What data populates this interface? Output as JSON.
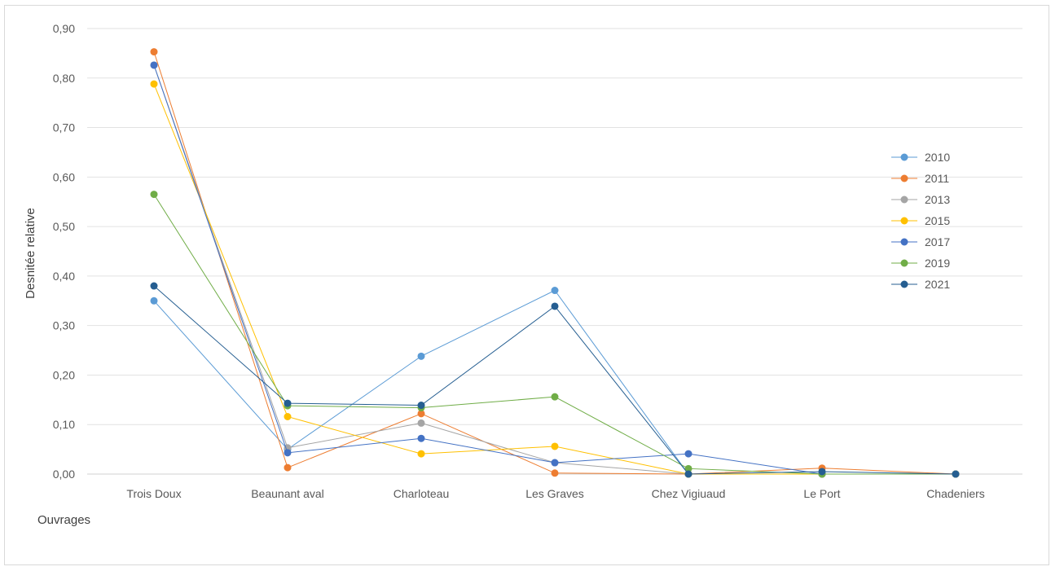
{
  "chart_data": {
    "type": "line",
    "title": "",
    "xlabel": "Ouvrages",
    "ylabel": "Desnitée relative",
    "ylim": [
      0,
      0.9
    ],
    "ytick_step": 0.1,
    "ytick_labels": [
      "0,00",
      "0,10",
      "0,20",
      "0,30",
      "0,40",
      "0,50",
      "0,60",
      "0,70",
      "0,80",
      "0,90"
    ],
    "categories": [
      "Trois Doux",
      "Beaunant aval",
      "Charloteau",
      "Les Graves",
      "Chez Vigiuaud",
      "Le Port",
      "Chadeniers"
    ],
    "grid": true,
    "legend_position": "right",
    "markers": "circle",
    "series": [
      {
        "name": "2010",
        "color": "#5B9BD5",
        "values": [
          0.35,
          0.05,
          0.238,
          0.371,
          0.0,
          0.0,
          0.0
        ]
      },
      {
        "name": "2011",
        "color": "#ED7D31",
        "values": [
          0.853,
          0.013,
          0.122,
          0.002,
          0.0,
          0.012,
          0.0
        ]
      },
      {
        "name": "2013",
        "color": "#A5A5A5",
        "values": [
          0.826,
          0.053,
          0.103,
          0.023,
          0.0,
          0.0,
          0.0
        ]
      },
      {
        "name": "2015",
        "color": "#FFC000",
        "values": [
          0.788,
          0.116,
          0.041,
          0.056,
          0.0,
          0.0,
          0.0
        ]
      },
      {
        "name": "2017",
        "color": "#4472C4",
        "values": [
          0.826,
          0.043,
          0.072,
          0.023,
          0.041,
          0.0,
          0.0
        ]
      },
      {
        "name": "2019",
        "color": "#70AD47",
        "values": [
          0.565,
          0.138,
          0.134,
          0.156,
          0.011,
          0.0,
          0.0
        ]
      },
      {
        "name": "2021",
        "color": "#255E91",
        "values": [
          0.38,
          0.143,
          0.139,
          0.339,
          0.0,
          0.005,
          0.0
        ]
      }
    ]
  }
}
